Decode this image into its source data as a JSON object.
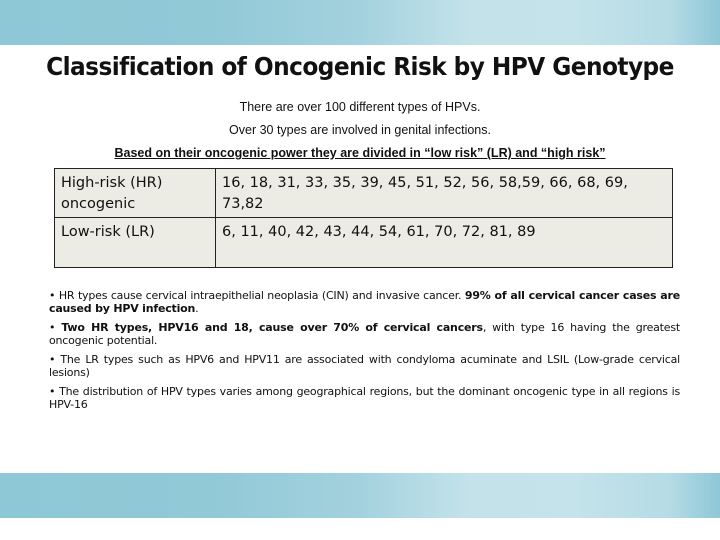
{
  "slide": {
    "title": "Classification of Oncogenic Risk by HPV Genotype",
    "intro_lines": [
      "There are over 100 different types of HPVs.",
      "Over 30 types are involved in genital infections.",
      "Based on their oncogenic power they are divided in “low risk” (LR) and “high risk”"
    ],
    "table": {
      "rows": [
        {
          "category": "High-risk (HR) oncogenic",
          "genotypes": "16, 18, 31, 33, 35, 39, 45, 51, 52, 56, 58,59, 66, 68, 69, 73,82"
        },
        {
          "category": "Low-risk (LR)",
          "genotypes": "6, 11, 40, 42, 43, 44, 54, 61, 70, 72, 81, 89"
        }
      ]
    },
    "bullets": [
      {
        "bullet": "•",
        "plain": " HR types cause cervical intraepithelial neoplasia (CIN) and invasive cancer. ",
        "bold": "99% of all cervical cancer cases are caused by HPV infection",
        "tail": "."
      },
      {
        "bullet": "•",
        "plain": " ",
        "bold": "Two HR types, HPV16 and 18, cause over 70% of cervical cancers",
        "tail": ", with type 16 having the greatest oncogenic potential."
      },
      {
        "bullet": "•",
        "plain": " The LR types such as HPV6 and HPV11 are associated with condyloma acuminate and LSIL (Low-grade cervical lesions)",
        "bold": "",
        "tail": ""
      },
      {
        "bullet": "•",
        "plain": " The distribution of HPV types varies among geographical regions, but the dominant oncogenic type in all regions is HPV-16",
        "bold": "",
        "tail": ""
      }
    ],
    "colors": {
      "band": "#8ec7d6",
      "band_light": "#c4e3ea",
      "table_fill": "#ecebe4"
    }
  }
}
